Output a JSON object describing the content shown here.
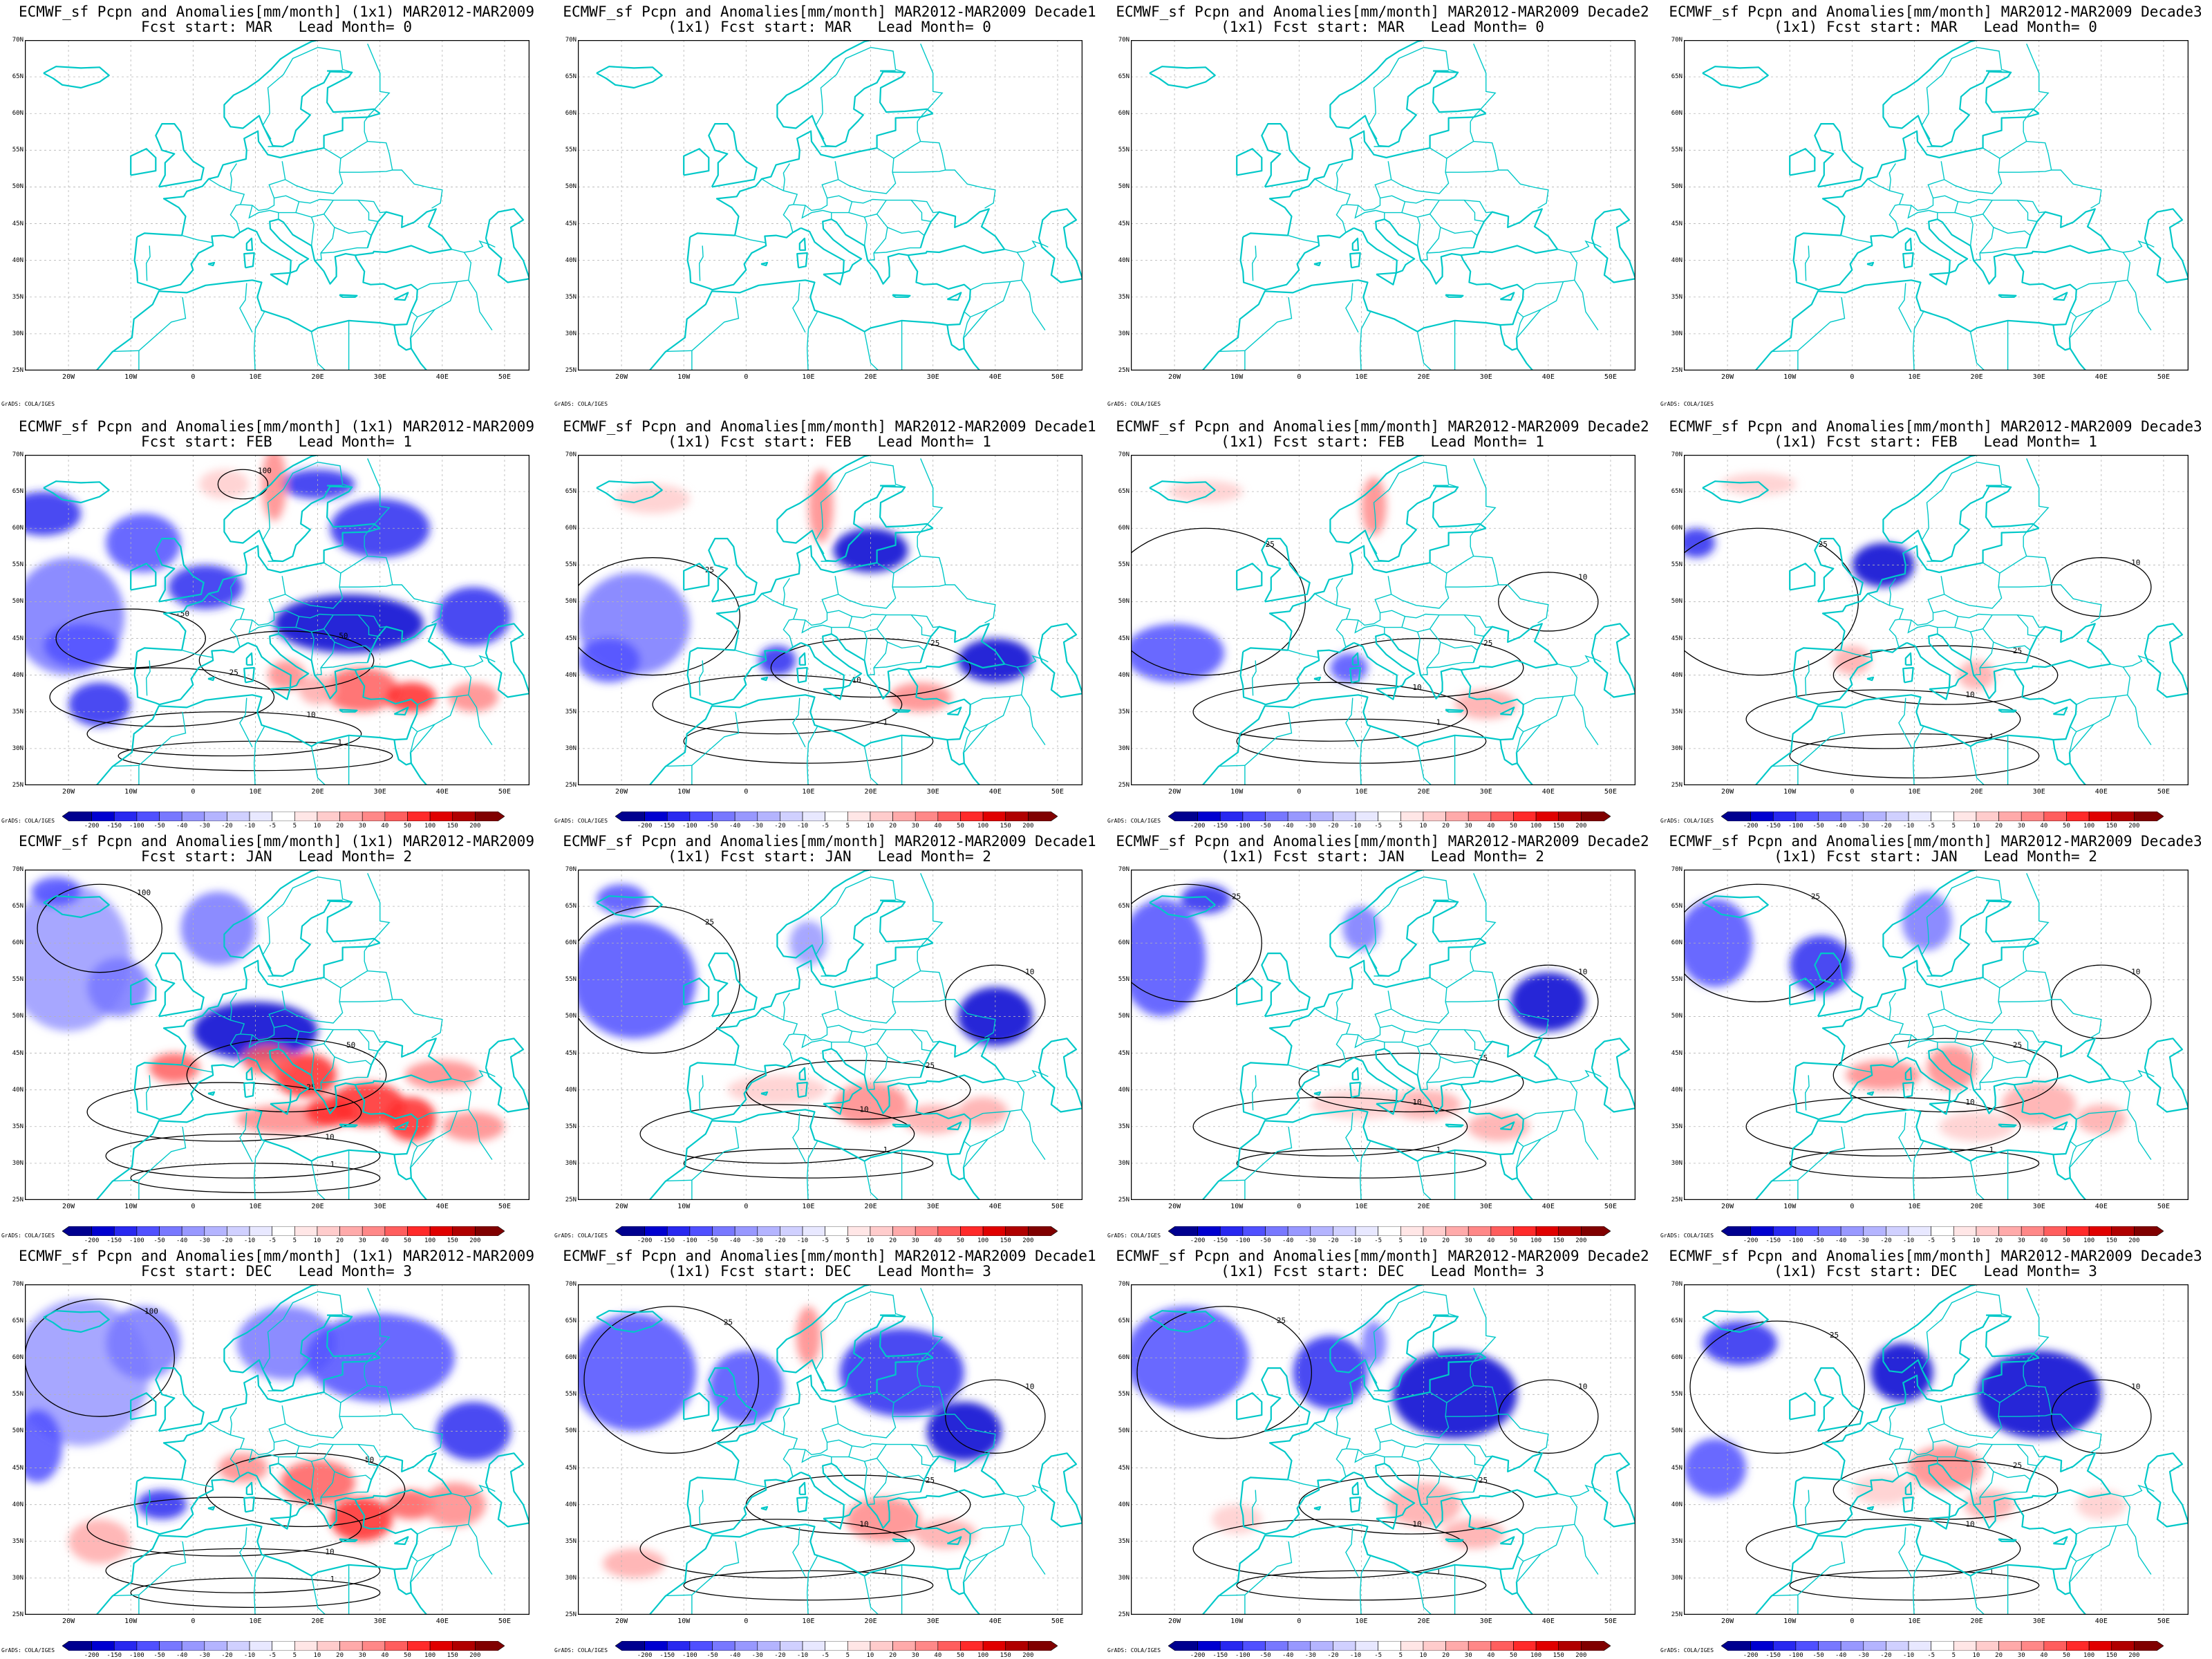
{
  "panels": [
    [
      {
        "title1": "ECMWF_sf Pcpn and Anomalies[mm/month] (1x1) MAR2012-MAR2009",
        "title2": "Fcst start: MAR   Lead Month= 0"
      },
      {
        "title1": "ECMWF_sf Pcpn and Anomalies[mm/month] MAR2012-MAR2009 Decade1",
        "title2": "(1x1) Fcst start: MAR   Lead Month= 0"
      },
      {
        "title1": "ECMWF_sf Pcpn and Anomalies[mm/month] MAR2012-MAR2009 Decade2",
        "title2": "(1x1) Fcst start: MAR   Lead Month= 0"
      },
      {
        "title1": "ECMWF_sf Pcpn and Anomalies[mm/month] MAR2012-MAR2009 Decade3",
        "title2": "(1x1) Fcst start: MAR   Lead Month= 0"
      }
    ],
    [
      {
        "title1": "ECMWF_sf Pcpn and Anomalies[mm/month] (1x1) MAR2012-MAR2009",
        "title2": "Fcst start: FEB   Lead Month= 1"
      },
      {
        "title1": "ECMWF_sf Pcpn and Anomalies[mm/month] MAR2012-MAR2009 Decade1",
        "title2": "(1x1) Fcst start: FEB   Lead Month= 1"
      },
      {
        "title1": "ECMWF_sf Pcpn and Anomalies[mm/month] MAR2012-MAR2009 Decade2",
        "title2": "(1x1) Fcst start: FEB   Lead Month= 1"
      },
      {
        "title1": "ECMWF_sf Pcpn and Anomalies[mm/month] MAR2012-MAR2009 Decade3",
        "title2": "(1x1) Fcst start: FEB   Lead Month= 1"
      }
    ],
    [
      {
        "title1": "ECMWF_sf Pcpn and Anomalies[mm/month] (1x1) MAR2012-MAR2009",
        "title2": "Fcst start: JAN   Lead Month= 2"
      },
      {
        "title1": "ECMWF_sf Pcpn and Anomalies[mm/month] MAR2012-MAR2009 Decade1",
        "title2": "(1x1) Fcst start: JAN   Lead Month= 2"
      },
      {
        "title1": "ECMWF_sf Pcpn and Anomalies[mm/month] MAR2012-MAR2009 Decade2",
        "title2": "(1x1) Fcst start: JAN   Lead Month= 2"
      },
      {
        "title1": "ECMWF_sf Pcpn and Anomalies[mm/month] MAR2012-MAR2009 Decade3",
        "title2": "(1x1) Fcst start: JAN   Lead Month= 2"
      }
    ],
    [
      {
        "title1": "ECMWF_sf Pcpn and Anomalies[mm/month] (1x1) MAR2012-MAR2009",
        "title2": "Fcst start: DEC   Lead Month= 3"
      },
      {
        "title1": "ECMWF_sf Pcpn and Anomalies[mm/month] MAR2012-MAR2009 Decade1",
        "title2": "(1x1) Fcst start: DEC   Lead Month= 3"
      },
      {
        "title1": "ECMWF_sf Pcpn and Anomalies[mm/month] MAR2012-MAR2009 Decade2",
        "title2": "(1x1) Fcst start: DEC   Lead Month= 3"
      },
      {
        "title1": "ECMWF_sf Pcpn and Anomalies[mm/month] MAR2012-MAR2009 Decade3",
        "title2": "(1x1) Fcst start: DEC   Lead Month= 3"
      }
    ]
  ],
  "lat_labels": [
    "70N",
    "65N",
    "60N",
    "55N",
    "50N",
    "45N",
    "40N",
    "35N",
    "30N",
    "25N"
  ],
  "lon_labels": [
    "20W",
    "10W",
    "0",
    "10E",
    "20E",
    "30E",
    "40E",
    "50E"
  ],
  "credit": "GrADS: COLA/IGES",
  "colorbar": {
    "ticks": [
      "-200",
      "-150",
      "-100",
      "-50",
      "-40",
      "-30",
      "-20",
      "-10",
      "-5",
      "5",
      "10",
      "20",
      "30",
      "40",
      "50",
      "100",
      "150",
      "200"
    ],
    "colors": [
      "#00008f",
      "#0000d0",
      "#2828f0",
      "#5050ff",
      "#7878ff",
      "#9898ff",
      "#b4b4ff",
      "#d0d0ff",
      "#e8e8ff",
      "#ffffff",
      "#ffe6e6",
      "#ffcccc",
      "#ffaaaa",
      "#ff8888",
      "#ff5e5e",
      "#ff2a2a",
      "#e00000",
      "#b00000",
      "#800000"
    ]
  },
  "colors": {
    "coast": "#00c8c8",
    "contour": "#000000",
    "grid": "#b4b4b4"
  }
}
